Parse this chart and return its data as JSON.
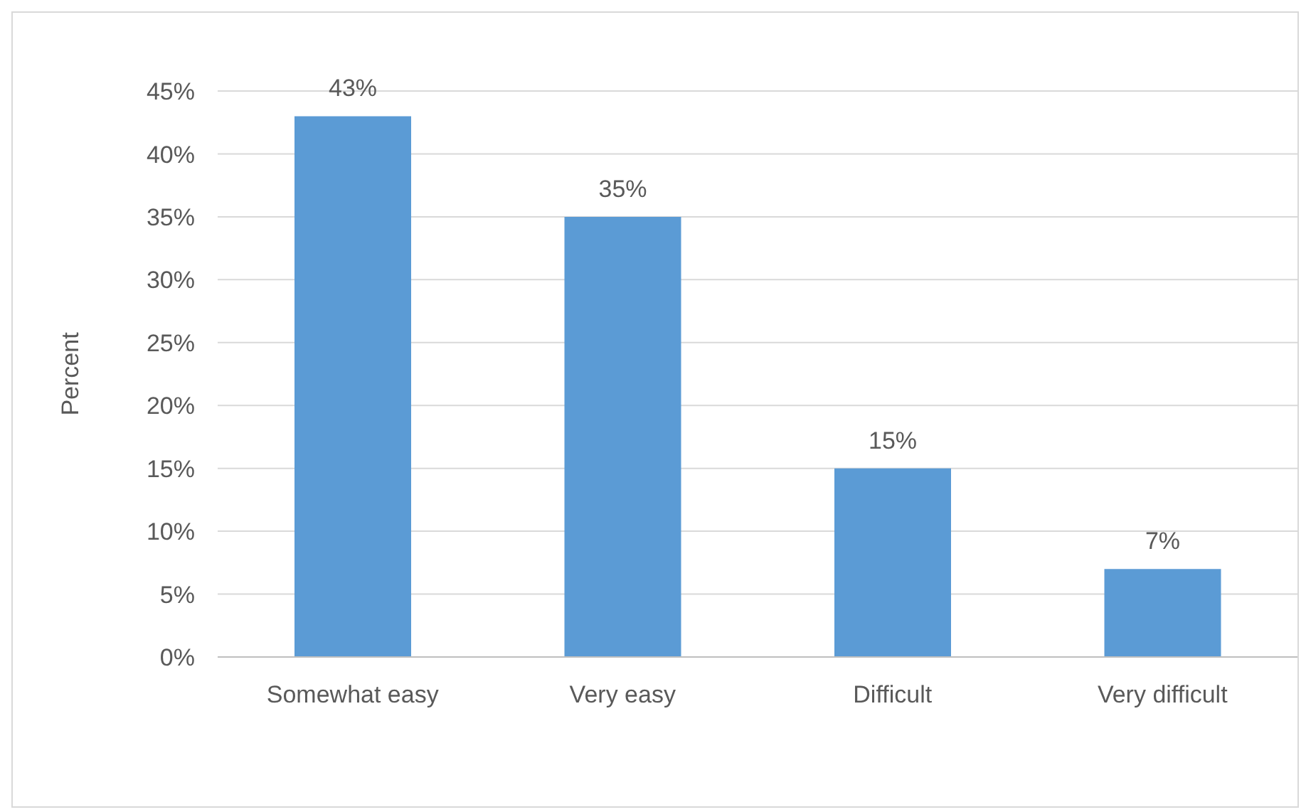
{
  "chart_data": {
    "type": "bar",
    "ylabel": "Percent",
    "categories": [
      "Somewhat easy",
      "Very easy",
      "Difficult",
      "Very difficult"
    ],
    "values": [
      43,
      35,
      15,
      7
    ],
    "value_labels": [
      "43%",
      "35%",
      "15%",
      "7%"
    ],
    "color": "#5b9bd5",
    "ylim": [
      0,
      45
    ],
    "yticks": [
      {
        "value": 0,
        "label": "0%"
      },
      {
        "value": 5,
        "label": "5%"
      },
      {
        "value": 10,
        "label": "10%"
      },
      {
        "value": 15,
        "label": "15%"
      },
      {
        "value": 20,
        "label": "20%"
      },
      {
        "value": 25,
        "label": "25%"
      },
      {
        "value": 30,
        "label": "30%"
      },
      {
        "value": 35,
        "label": "35%"
      },
      {
        "value": 40,
        "label": "40%"
      },
      {
        "value": 45,
        "label": "45%"
      }
    ],
    "grid": "y",
    "legend": false
  }
}
